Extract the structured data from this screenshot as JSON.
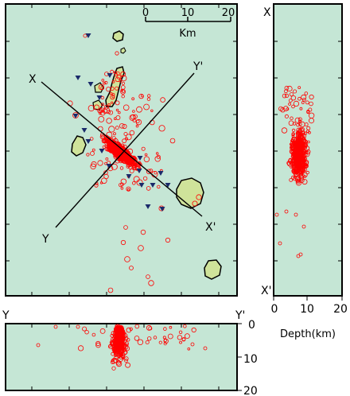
{
  "colors": {
    "sea": "#c5e6d5",
    "land": "#cfe39a",
    "quake": "#ff0000",
    "station": "#1a2a6a",
    "frame": "#000000"
  },
  "scale_bar": {
    "ticks": [
      "0",
      "10",
      "20"
    ],
    "unit": "Km"
  },
  "profile_xx": {
    "start_label": "X",
    "end_label": "X'",
    "depth_ticks": [
      "0",
      "10",
      "20"
    ],
    "depth_axis_label": "Depth(km)"
  },
  "profile_yy": {
    "start_label": "Y",
    "end_label": "Y'",
    "depth_ticks": [
      "0",
      "10",
      "20"
    ]
  },
  "icons": {
    "station": "inverted-triangle",
    "earthquake": "open-circle"
  }
}
